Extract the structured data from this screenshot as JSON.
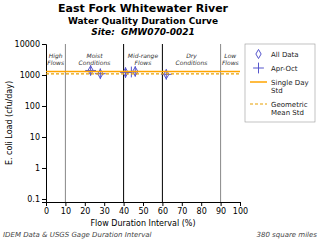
{
  "chart_data": {
    "type": "scatter",
    "title": "East Fork Whitewater River",
    "subtitle": [
      "Water Quality Duration Curve",
      "Site:  GMW070-0021"
    ],
    "x_label": "Flow Duration Interval (%)",
    "y_label": "E. coli Load (cfu/day)",
    "footnotes": [
      "IDEM Data & USGS Gage Duration Interval",
      "380 square miles"
    ],
    "log": "y",
    "grid": false,
    "legend": "right",
    "xlim": [
      0,
      100
    ],
    "xticks": [
      0,
      10,
      20,
      30,
      40,
      50,
      60,
      70,
      80,
      90,
      100
    ],
    "ylim": [
      0.08,
      10000
    ],
    "yticks": [
      0.1,
      1,
      10,
      100,
      1000,
      10000
    ],
    "vlines": [
      {
        "x": 10,
        "color": "#888888"
      },
      {
        "x": 90,
        "color": "#888888"
      },
      {
        "x": 40,
        "color": "#000000"
      },
      {
        "x": 60,
        "color": "#000000"
      }
    ],
    "annotations": [
      {
        "text": "High\nFlows",
        "x": 5,
        "y": 5000
      },
      {
        "text": "Moist\nConditions",
        "x": 25,
        "y": 5000
      },
      {
        "text": "Mid-range\nFlows",
        "x": 50,
        "y": 5000
      },
      {
        "text": "Dry\nConditions",
        "x": 75,
        "y": 5000
      },
      {
        "text": "Low\nFlows",
        "x": 95,
        "y": 5000
      }
    ],
    "series": [
      {
        "name": "All Data",
        "type": "scatter",
        "marker": "diamond",
        "color": "#5555CC",
        "x": [
          23,
          28,
          41,
          46,
          62
        ],
        "values": [
          1400,
          1100,
          1200,
          1300,
          1050
        ]
      },
      {
        "name": "Apr-Oct",
        "type": "scatter",
        "marker": "plus",
        "color": "#5555CC",
        "x": [
          23,
          28,
          41,
          44,
          46,
          62
        ],
        "values": [
          1400,
          1100,
          1200,
          1250,
          1300,
          1050
        ]
      },
      {
        "name": "Single Day\nStd",
        "type": "hline",
        "line_style": "solid",
        "color": "#FFA500",
        "values": [
          1300
        ]
      },
      {
        "name": "Geometric\nMean Std",
        "type": "hline",
        "line_style": "dashed",
        "color": "#E8A000",
        "values": [
          1080
        ]
      }
    ]
  }
}
